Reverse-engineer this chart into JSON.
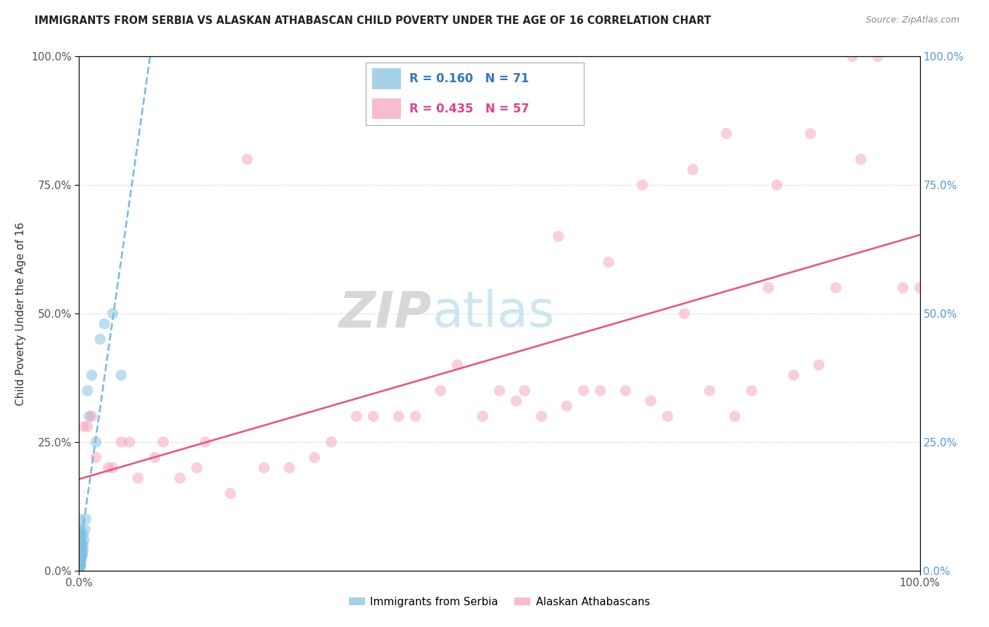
{
  "title": "IMMIGRANTS FROM SERBIA VS ALASKAN ATHABASCAN CHILD POVERTY UNDER THE AGE OF 16 CORRELATION CHART",
  "source": "Source: ZipAtlas.com",
  "ylabel": "Child Poverty Under the Age of 16",
  "legend1_label": "Immigrants from Serbia",
  "legend2_label": "Alaskan Athabascans",
  "r1": "0.160",
  "n1": "71",
  "r2": "0.435",
  "n2": "57",
  "color_blue": "#7fbfdf",
  "color_pink": "#f4a0b8",
  "color_blue_line": "#7fbfdf",
  "color_pink_line": "#e06080",
  "color_right_label": "#5599cc",
  "watermark_zip": "ZIP",
  "watermark_atlas": "atlas",
  "background": "#ffffff",
  "grid_color": "#dddddd",
  "blue_x": [
    0.05,
    0.05,
    0.1,
    0.1,
    0.1,
    0.15,
    0.15,
    0.15,
    0.2,
    0.2,
    0.2,
    0.2,
    0.25,
    0.25,
    0.3,
    0.3,
    0.35,
    0.4,
    0.45,
    0.5,
    0.5,
    0.6,
    0.7,
    0.8,
    1.0,
    1.2,
    1.5,
    2.0,
    2.5,
    3.0,
    4.0,
    5.0,
    0.05,
    0.05,
    0.05,
    0.08,
    0.08,
    0.08,
    0.08,
    0.12,
    0.12,
    0.12,
    0.18,
    0.18,
    0.22,
    0.22,
    0.05,
    0.05,
    0.05,
    0.05,
    0.05,
    0.05,
    0.05,
    0.05,
    0.05,
    0.05,
    0.05,
    0.05,
    0.05,
    0.05,
    0.05,
    0.05,
    0.05,
    0.05,
    0.05,
    0.05,
    0.05,
    0.05,
    0.05,
    0.05,
    0.05
  ],
  "blue_y": [
    5.0,
    8.0,
    3.0,
    6.0,
    10.0,
    2.0,
    4.0,
    7.0,
    1.0,
    3.0,
    5.0,
    8.0,
    2.0,
    6.0,
    3.0,
    5.0,
    4.0,
    3.0,
    5.0,
    7.0,
    4.0,
    6.0,
    8.0,
    10.0,
    35.0,
    30.0,
    38.0,
    25.0,
    45.0,
    48.0,
    50.0,
    38.0,
    1.0,
    2.0,
    3.0,
    1.0,
    2.0,
    3.0,
    4.0,
    1.0,
    2.0,
    3.0,
    2.0,
    4.0,
    3.0,
    5.0,
    0.5,
    1.0,
    1.5,
    2.0,
    2.5,
    3.0,
    3.5,
    4.0,
    4.5,
    5.0,
    5.5,
    6.0,
    6.5,
    7.0,
    0.3,
    0.8,
    1.2,
    1.8,
    2.2,
    2.8,
    3.2,
    3.8,
    4.2,
    4.8,
    5.2
  ],
  "pink_x": [
    1.0,
    2.0,
    3.5,
    5.0,
    7.0,
    9.0,
    12.0,
    14.0,
    18.0,
    20.0,
    25.0,
    30.0,
    35.0,
    40.0,
    45.0,
    50.0,
    52.0,
    55.0,
    58.0,
    60.0,
    62.0,
    65.0,
    68.0,
    70.0,
    72.0,
    75.0,
    78.0,
    80.0,
    82.0,
    85.0,
    88.0,
    90.0,
    92.0,
    95.0,
    98.0,
    100.0,
    0.5,
    1.5,
    4.0,
    6.0,
    10.0,
    15.0,
    22.0,
    28.0,
    33.0,
    38.0,
    43.0,
    48.0,
    53.0,
    57.0,
    63.0,
    67.0,
    73.0,
    77.0,
    83.0,
    87.0,
    93.0
  ],
  "pink_y": [
    28.0,
    22.0,
    20.0,
    25.0,
    18.0,
    22.0,
    18.0,
    20.0,
    15.0,
    80.0,
    20.0,
    25.0,
    30.0,
    30.0,
    40.0,
    35.0,
    33.0,
    30.0,
    32.0,
    35.0,
    35.0,
    35.0,
    33.0,
    30.0,
    50.0,
    35.0,
    30.0,
    35.0,
    55.0,
    38.0,
    40.0,
    55.0,
    100.0,
    100.0,
    55.0,
    55.0,
    28.0,
    30.0,
    20.0,
    25.0,
    25.0,
    25.0,
    20.0,
    22.0,
    30.0,
    30.0,
    35.0,
    30.0,
    35.0,
    65.0,
    60.0,
    75.0,
    78.0,
    85.0,
    75.0,
    85.0,
    80.0
  ]
}
